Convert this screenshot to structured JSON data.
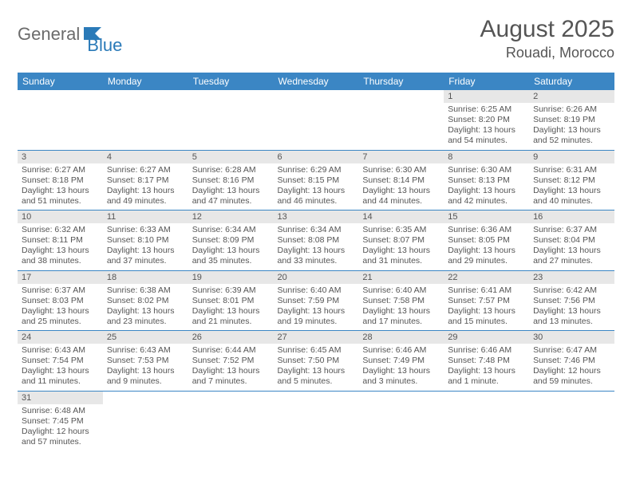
{
  "brand": {
    "part1": "General",
    "part2": "Blue"
  },
  "title": {
    "month": "August 2025",
    "location": "Rouadi, Morocco"
  },
  "colors": {
    "headerBg": "#3b86c4",
    "headerText": "#ffffff",
    "dayNumBg": "#e7e7e7",
    "text": "#555555",
    "rowDivider": "#3b86c4"
  },
  "weekdays": [
    "Sunday",
    "Monday",
    "Tuesday",
    "Wednesday",
    "Thursday",
    "Friday",
    "Saturday"
  ],
  "weeks": [
    [
      {
        "n": "",
        "sr": "",
        "ss": "",
        "dl": ""
      },
      {
        "n": "",
        "sr": "",
        "ss": "",
        "dl": ""
      },
      {
        "n": "",
        "sr": "",
        "ss": "",
        "dl": ""
      },
      {
        "n": "",
        "sr": "",
        "ss": "",
        "dl": ""
      },
      {
        "n": "",
        "sr": "",
        "ss": "",
        "dl": ""
      },
      {
        "n": "1",
        "sr": "Sunrise: 6:25 AM",
        "ss": "Sunset: 8:20 PM",
        "dl": "Daylight: 13 hours and 54 minutes."
      },
      {
        "n": "2",
        "sr": "Sunrise: 6:26 AM",
        "ss": "Sunset: 8:19 PM",
        "dl": "Daylight: 13 hours and 52 minutes."
      }
    ],
    [
      {
        "n": "3",
        "sr": "Sunrise: 6:27 AM",
        "ss": "Sunset: 8:18 PM",
        "dl": "Daylight: 13 hours and 51 minutes."
      },
      {
        "n": "4",
        "sr": "Sunrise: 6:27 AM",
        "ss": "Sunset: 8:17 PM",
        "dl": "Daylight: 13 hours and 49 minutes."
      },
      {
        "n": "5",
        "sr": "Sunrise: 6:28 AM",
        "ss": "Sunset: 8:16 PM",
        "dl": "Daylight: 13 hours and 47 minutes."
      },
      {
        "n": "6",
        "sr": "Sunrise: 6:29 AM",
        "ss": "Sunset: 8:15 PM",
        "dl": "Daylight: 13 hours and 46 minutes."
      },
      {
        "n": "7",
        "sr": "Sunrise: 6:30 AM",
        "ss": "Sunset: 8:14 PM",
        "dl": "Daylight: 13 hours and 44 minutes."
      },
      {
        "n": "8",
        "sr": "Sunrise: 6:30 AM",
        "ss": "Sunset: 8:13 PM",
        "dl": "Daylight: 13 hours and 42 minutes."
      },
      {
        "n": "9",
        "sr": "Sunrise: 6:31 AM",
        "ss": "Sunset: 8:12 PM",
        "dl": "Daylight: 13 hours and 40 minutes."
      }
    ],
    [
      {
        "n": "10",
        "sr": "Sunrise: 6:32 AM",
        "ss": "Sunset: 8:11 PM",
        "dl": "Daylight: 13 hours and 38 minutes."
      },
      {
        "n": "11",
        "sr": "Sunrise: 6:33 AM",
        "ss": "Sunset: 8:10 PM",
        "dl": "Daylight: 13 hours and 37 minutes."
      },
      {
        "n": "12",
        "sr": "Sunrise: 6:34 AM",
        "ss": "Sunset: 8:09 PM",
        "dl": "Daylight: 13 hours and 35 minutes."
      },
      {
        "n": "13",
        "sr": "Sunrise: 6:34 AM",
        "ss": "Sunset: 8:08 PM",
        "dl": "Daylight: 13 hours and 33 minutes."
      },
      {
        "n": "14",
        "sr": "Sunrise: 6:35 AM",
        "ss": "Sunset: 8:07 PM",
        "dl": "Daylight: 13 hours and 31 minutes."
      },
      {
        "n": "15",
        "sr": "Sunrise: 6:36 AM",
        "ss": "Sunset: 8:05 PM",
        "dl": "Daylight: 13 hours and 29 minutes."
      },
      {
        "n": "16",
        "sr": "Sunrise: 6:37 AM",
        "ss": "Sunset: 8:04 PM",
        "dl": "Daylight: 13 hours and 27 minutes."
      }
    ],
    [
      {
        "n": "17",
        "sr": "Sunrise: 6:37 AM",
        "ss": "Sunset: 8:03 PM",
        "dl": "Daylight: 13 hours and 25 minutes."
      },
      {
        "n": "18",
        "sr": "Sunrise: 6:38 AM",
        "ss": "Sunset: 8:02 PM",
        "dl": "Daylight: 13 hours and 23 minutes."
      },
      {
        "n": "19",
        "sr": "Sunrise: 6:39 AM",
        "ss": "Sunset: 8:01 PM",
        "dl": "Daylight: 13 hours and 21 minutes."
      },
      {
        "n": "20",
        "sr": "Sunrise: 6:40 AM",
        "ss": "Sunset: 7:59 PM",
        "dl": "Daylight: 13 hours and 19 minutes."
      },
      {
        "n": "21",
        "sr": "Sunrise: 6:40 AM",
        "ss": "Sunset: 7:58 PM",
        "dl": "Daylight: 13 hours and 17 minutes."
      },
      {
        "n": "22",
        "sr": "Sunrise: 6:41 AM",
        "ss": "Sunset: 7:57 PM",
        "dl": "Daylight: 13 hours and 15 minutes."
      },
      {
        "n": "23",
        "sr": "Sunrise: 6:42 AM",
        "ss": "Sunset: 7:56 PM",
        "dl": "Daylight: 13 hours and 13 minutes."
      }
    ],
    [
      {
        "n": "24",
        "sr": "Sunrise: 6:43 AM",
        "ss": "Sunset: 7:54 PM",
        "dl": "Daylight: 13 hours and 11 minutes."
      },
      {
        "n": "25",
        "sr": "Sunrise: 6:43 AM",
        "ss": "Sunset: 7:53 PM",
        "dl": "Daylight: 13 hours and 9 minutes."
      },
      {
        "n": "26",
        "sr": "Sunrise: 6:44 AM",
        "ss": "Sunset: 7:52 PM",
        "dl": "Daylight: 13 hours and 7 minutes."
      },
      {
        "n": "27",
        "sr": "Sunrise: 6:45 AM",
        "ss": "Sunset: 7:50 PM",
        "dl": "Daylight: 13 hours and 5 minutes."
      },
      {
        "n": "28",
        "sr": "Sunrise: 6:46 AM",
        "ss": "Sunset: 7:49 PM",
        "dl": "Daylight: 13 hours and 3 minutes."
      },
      {
        "n": "29",
        "sr": "Sunrise: 6:46 AM",
        "ss": "Sunset: 7:48 PM",
        "dl": "Daylight: 13 hours and 1 minute."
      },
      {
        "n": "30",
        "sr": "Sunrise: 6:47 AM",
        "ss": "Sunset: 7:46 PM",
        "dl": "Daylight: 12 hours and 59 minutes."
      }
    ],
    [
      {
        "n": "31",
        "sr": "Sunrise: 6:48 AM",
        "ss": "Sunset: 7:45 PM",
        "dl": "Daylight: 12 hours and 57 minutes."
      },
      {
        "n": "",
        "sr": "",
        "ss": "",
        "dl": ""
      },
      {
        "n": "",
        "sr": "",
        "ss": "",
        "dl": ""
      },
      {
        "n": "",
        "sr": "",
        "ss": "",
        "dl": ""
      },
      {
        "n": "",
        "sr": "",
        "ss": "",
        "dl": ""
      },
      {
        "n": "",
        "sr": "",
        "ss": "",
        "dl": ""
      },
      {
        "n": "",
        "sr": "",
        "ss": "",
        "dl": ""
      }
    ]
  ]
}
